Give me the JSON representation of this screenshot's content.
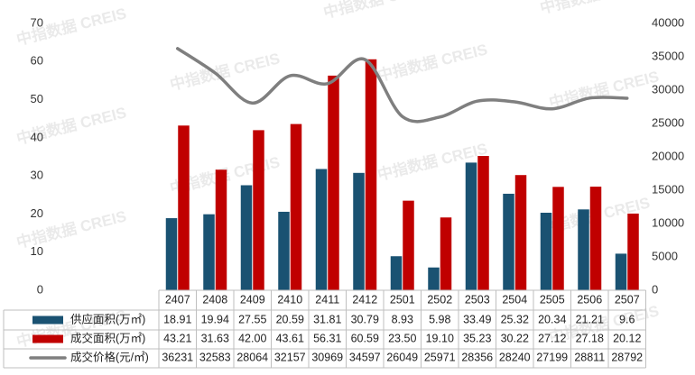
{
  "watermark": "中指数据 CREIS",
  "chart_data": {
    "type": "bar",
    "categories": [
      "2407",
      "2408",
      "2409",
      "2410",
      "2411",
      "2412",
      "2501",
      "2502",
      "2503",
      "2504",
      "2505",
      "2506",
      "2507"
    ],
    "series": [
      {
        "name": "供应面积(万㎡)",
        "kind": "bar",
        "axis": "left",
        "color": "#1a5272",
        "values": [
          18.91,
          19.94,
          27.55,
          20.59,
          31.81,
          30.79,
          8.93,
          5.98,
          33.49,
          25.32,
          20.34,
          21.21,
          9.6
        ],
        "labels": [
          "18.91",
          "19.94",
          "27.55",
          "20.59",
          "31.81",
          "30.79",
          "8.93",
          "5.98",
          "33.49",
          "25.32",
          "20.34",
          "21.21",
          "9.6"
        ]
      },
      {
        "name": "成交面积(万㎡)",
        "kind": "bar",
        "axis": "left",
        "color": "#c00000",
        "values": [
          43.21,
          31.63,
          42.0,
          43.61,
          56.31,
          60.59,
          23.5,
          19.1,
          35.23,
          30.22,
          27.12,
          27.18,
          20.12
        ],
        "labels": [
          "43.21",
          "31.63",
          "42.00",
          "43.61",
          "56.31",
          "60.59",
          "23.50",
          "19.10",
          "35.23",
          "30.22",
          "27.12",
          "27.18",
          "20.12"
        ]
      },
      {
        "name": "成交价格(元/㎡)",
        "kind": "line",
        "axis": "right",
        "color": "#7f7f7f",
        "values": [
          36231,
          32583,
          28064,
          32157,
          30969,
          34597,
          26049,
          25971,
          28356,
          28240,
          27199,
          28811,
          28792
        ],
        "labels": [
          "36231",
          "32583",
          "28064",
          "32157",
          "30969",
          "34597",
          "26049",
          "25971",
          "28356",
          "28240",
          "27199",
          "28811",
          "28792"
        ]
      }
    ],
    "y_left": {
      "min": 0,
      "max": 70,
      "ticks": [
        "0",
        "10",
        "20",
        "30",
        "40",
        "50",
        "60",
        "70"
      ]
    },
    "y_right": {
      "min": 0,
      "max": 40000,
      "ticks": [
        "0",
        "5000",
        "10000",
        "15000",
        "20000",
        "25000",
        "30000",
        "35000",
        "40000"
      ]
    },
    "legend": "data-table-below",
    "grid": false
  }
}
